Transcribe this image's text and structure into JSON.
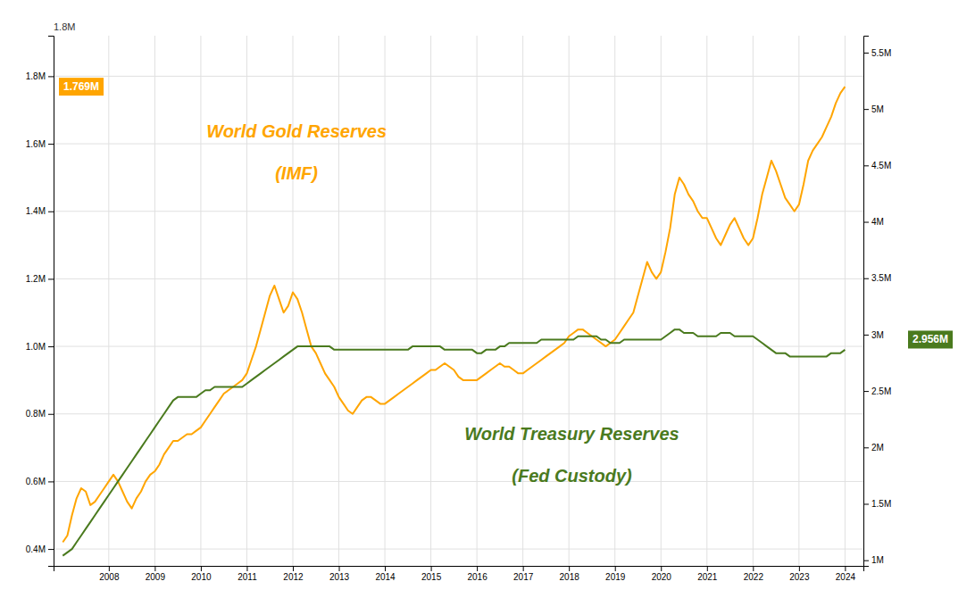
{
  "chart_data": {
    "type": "line",
    "x": [
      2007.0,
      2007.1,
      2007.2,
      2007.3,
      2007.4,
      2007.5,
      2007.6,
      2007.7,
      2007.8,
      2007.9,
      2008.0,
      2008.1,
      2008.2,
      2008.3,
      2008.4,
      2008.5,
      2008.6,
      2008.7,
      2008.8,
      2008.9,
      2009.0,
      2009.1,
      2009.2,
      2009.3,
      2009.4,
      2009.5,
      2009.6,
      2009.7,
      2009.8,
      2009.9,
      2010.0,
      2010.1,
      2010.2,
      2010.3,
      2010.4,
      2010.5,
      2010.6,
      2010.7,
      2010.8,
      2010.9,
      2011.0,
      2011.1,
      2011.2,
      2011.3,
      2011.4,
      2011.5,
      2011.6,
      2011.7,
      2011.8,
      2011.9,
      2012.0,
      2012.1,
      2012.2,
      2012.3,
      2012.4,
      2012.5,
      2012.6,
      2012.7,
      2012.8,
      2012.9,
      2013.0,
      2013.1,
      2013.2,
      2013.3,
      2013.4,
      2013.5,
      2013.6,
      2013.7,
      2013.8,
      2013.9,
      2014.0,
      2014.1,
      2014.2,
      2014.3,
      2014.4,
      2014.5,
      2014.6,
      2014.7,
      2014.8,
      2014.9,
      2015.0,
      2015.1,
      2015.2,
      2015.3,
      2015.4,
      2015.5,
      2015.6,
      2015.7,
      2015.8,
      2015.9,
      2016.0,
      2016.1,
      2016.2,
      2016.3,
      2016.4,
      2016.5,
      2016.6,
      2016.7,
      2016.8,
      2016.9,
      2017.0,
      2017.1,
      2017.2,
      2017.3,
      2017.4,
      2017.5,
      2017.6,
      2017.7,
      2017.8,
      2017.9,
      2018.0,
      2018.1,
      2018.2,
      2018.3,
      2018.4,
      2018.5,
      2018.6,
      2018.7,
      2018.8,
      2018.9,
      2019.0,
      2019.1,
      2019.2,
      2019.3,
      2019.4,
      2019.5,
      2019.6,
      2019.7,
      2019.8,
      2019.9,
      2020.0,
      2020.1,
      2020.2,
      2020.3,
      2020.4,
      2020.5,
      2020.6,
      2020.7,
      2020.8,
      2020.9,
      2021.0,
      2021.1,
      2021.2,
      2021.3,
      2021.4,
      2021.5,
      2021.6,
      2021.7,
      2021.8,
      2021.9,
      2022.0,
      2022.1,
      2022.2,
      2022.3,
      2022.4,
      2022.5,
      2022.6,
      2022.7,
      2022.8,
      2022.9,
      2023.0,
      2023.1,
      2023.2,
      2023.3,
      2023.4,
      2023.5,
      2023.6,
      2023.7,
      2023.8,
      2023.9,
      2024.0
    ],
    "series": [
      {
        "color": "#FFA500",
        "values": [
          0.42,
          0.44,
          0.5,
          0.55,
          0.58,
          0.57,
          0.53,
          0.54,
          0.56,
          0.58,
          0.6,
          0.62,
          0.6,
          0.57,
          0.54,
          0.52,
          0.55,
          0.57,
          0.6,
          0.62,
          0.63,
          0.65,
          0.68,
          0.7,
          0.72,
          0.72,
          0.73,
          0.74,
          0.74,
          0.75,
          0.76,
          0.78,
          0.8,
          0.82,
          0.84,
          0.86,
          0.87,
          0.88,
          0.89,
          0.9,
          0.92,
          0.96,
          1.0,
          1.05,
          1.1,
          1.15,
          1.18,
          1.14,
          1.1,
          1.12,
          1.16,
          1.14,
          1.1,
          1.05,
          1.0,
          0.98,
          0.95,
          0.92,
          0.9,
          0.88,
          0.85,
          0.83,
          0.81,
          0.8,
          0.82,
          0.84,
          0.85,
          0.85,
          0.84,
          0.83,
          0.83,
          0.84,
          0.85,
          0.86,
          0.87,
          0.88,
          0.89,
          0.9,
          0.91,
          0.92,
          0.93,
          0.93,
          0.94,
          0.95,
          0.94,
          0.93,
          0.91,
          0.9,
          0.9,
          0.9,
          0.9,
          0.91,
          0.92,
          0.93,
          0.94,
          0.95,
          0.94,
          0.94,
          0.93,
          0.92,
          0.92,
          0.93,
          0.94,
          0.95,
          0.96,
          0.97,
          0.98,
          0.99,
          1.0,
          1.01,
          1.03,
          1.04,
          1.05,
          1.05,
          1.04,
          1.03,
          1.02,
          1.01,
          1.0,
          1.01,
          1.02,
          1.04,
          1.06,
          1.08,
          1.1,
          1.15,
          1.2,
          1.25,
          1.22,
          1.2,
          1.22,
          1.28,
          1.35,
          1.45,
          1.5,
          1.48,
          1.45,
          1.43,
          1.4,
          1.38,
          1.38,
          1.35,
          1.32,
          1.3,
          1.33,
          1.36,
          1.38,
          1.35,
          1.32,
          1.3,
          1.32,
          1.38,
          1.45,
          1.5,
          1.55,
          1.52,
          1.48,
          1.44,
          1.42,
          1.4,
          1.42,
          1.48,
          1.55,
          1.58,
          1.6,
          1.62,
          1.65,
          1.68,
          1.72,
          1.75,
          1.769
        ]
      },
      {
        "color": "#4a7a1e",
        "values": [
          0.38,
          0.39,
          0.4,
          0.42,
          0.44,
          0.46,
          0.48,
          0.5,
          0.52,
          0.54,
          0.56,
          0.58,
          0.6,
          0.62,
          0.64,
          0.66,
          0.68,
          0.7,
          0.72,
          0.74,
          0.76,
          0.78,
          0.8,
          0.82,
          0.84,
          0.85,
          0.85,
          0.85,
          0.85,
          0.85,
          0.86,
          0.87,
          0.87,
          0.88,
          0.88,
          0.88,
          0.88,
          0.88,
          0.88,
          0.88,
          0.89,
          0.9,
          0.91,
          0.92,
          0.93,
          0.94,
          0.95,
          0.96,
          0.97,
          0.98,
          0.99,
          1.0,
          1.0,
          1.0,
          1.0,
          1.0,
          1.0,
          1.0,
          1.0,
          0.99,
          0.99,
          0.99,
          0.99,
          0.99,
          0.99,
          0.99,
          0.99,
          0.99,
          0.99,
          0.99,
          0.99,
          0.99,
          0.99,
          0.99,
          0.99,
          0.99,
          1.0,
          1.0,
          1.0,
          1.0,
          1.0,
          1.0,
          1.0,
          0.99,
          0.99,
          0.99,
          0.99,
          0.99,
          0.99,
          0.99,
          0.98,
          0.98,
          0.99,
          0.99,
          0.99,
          1.0,
          1.0,
          1.01,
          1.01,
          1.01,
          1.01,
          1.01,
          1.01,
          1.01,
          1.02,
          1.02,
          1.02,
          1.02,
          1.02,
          1.02,
          1.02,
          1.02,
          1.03,
          1.03,
          1.03,
          1.03,
          1.03,
          1.02,
          1.02,
          1.01,
          1.01,
          1.01,
          1.02,
          1.02,
          1.02,
          1.02,
          1.02,
          1.02,
          1.02,
          1.02,
          1.02,
          1.03,
          1.04,
          1.05,
          1.05,
          1.04,
          1.04,
          1.04,
          1.03,
          1.03,
          1.03,
          1.03,
          1.03,
          1.04,
          1.04,
          1.04,
          1.03,
          1.03,
          1.03,
          1.03,
          1.03,
          1.02,
          1.01,
          1.0,
          0.99,
          0.98,
          0.98,
          0.98,
          0.97,
          0.97,
          0.97,
          0.97,
          0.97,
          0.97,
          0.97,
          0.97,
          0.97,
          0.98,
          0.98,
          0.98,
          0.99
        ]
      }
    ],
    "xlim": [
      2006.8,
      2024.4
    ],
    "xticks": [
      2008,
      2009,
      2010,
      2011,
      2012,
      2013,
      2014,
      2015,
      2016,
      2017,
      2018,
      2019,
      2020,
      2021,
      2022,
      2023,
      2024
    ],
    "ylim": [
      0.35,
      1.92
    ],
    "yticks": [
      {
        "value": 0.4,
        "label": "0.4M"
      },
      {
        "value": 0.6,
        "label": "0.6M"
      },
      {
        "value": 0.8,
        "label": "0.8M"
      },
      {
        "value": 1.0,
        "label": "1.0M"
      },
      {
        "value": 1.2,
        "label": "1.2M"
      },
      {
        "value": 1.4,
        "label": "1.4M"
      },
      {
        "value": 1.6,
        "label": "1.6M"
      },
      {
        "value": 1.8,
        "label": "1.8M"
      }
    ],
    "y2lim": [
      0.95,
      5.65
    ],
    "y2ticks": [
      {
        "value": 1.0,
        "label": "1M"
      },
      {
        "value": 1.5,
        "label": "1.5M"
      },
      {
        "value": 2.0,
        "label": "2M"
      },
      {
        "value": 2.5,
        "label": "2.5M"
      },
      {
        "value": 3.0,
        "label": "3M"
      },
      {
        "value": 3.5,
        "label": "3.5M"
      },
      {
        "value": 4.0,
        "label": "4M"
      },
      {
        "value": 4.5,
        "label": "4.5M"
      },
      {
        "value": 5.0,
        "label": "5M"
      },
      {
        "value": 5.5,
        "label": "5.5M"
      }
    ],
    "grid": true,
    "annotations": [
      {
        "text": "World Gold Reserves",
        "color": "#FFA500"
      },
      {
        "text": "(IMF)",
        "color": "#FFA500"
      },
      {
        "text": "World Treasury Reserves",
        "color": "#4a7a1e"
      },
      {
        "text": "(Fed Custody)",
        "color": "#4a7a1e"
      },
      {
        "text": "1.8M"
      },
      {
        "text": "1.769M",
        "value": 1.769,
        "color": "#FFA500"
      },
      {
        "text": "2.956M",
        "value": 2.956,
        "axis": "y2",
        "color": "#4a7a1e"
      }
    ]
  }
}
